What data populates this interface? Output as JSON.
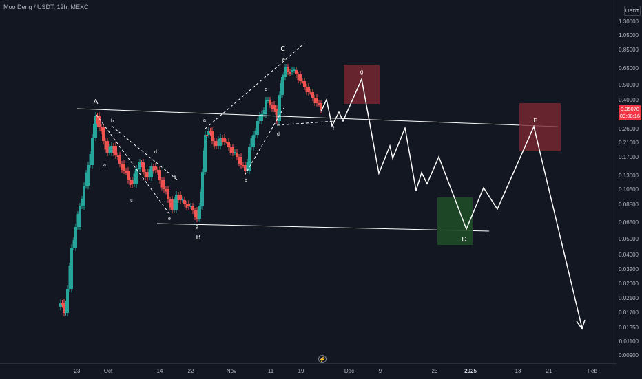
{
  "header": {
    "symbol_title": "Moo Deng / USDT, 12h, MEXC"
  },
  "price_axis": {
    "currency_label": "USDT",
    "last_price": "0.35078",
    "countdown": "09:00:16",
    "ticks": [
      "1.30000",
      "1.05000",
      "0.85000",
      "0.65000",
      "0.50000",
      "0.40000",
      "0.26000",
      "0.21000",
      "0.17000",
      "0.13000",
      "0.10500",
      "0.08500",
      "0.06500",
      "0.05000",
      "0.04000",
      "0.03200",
      "0.02600",
      "0.02100",
      "0.01700",
      "0.01350",
      "0.01100",
      "0.00900"
    ]
  },
  "time_axis": {
    "ticks": [
      "23",
      "Oct",
      "14",
      "22",
      "Nov",
      "11",
      "19",
      "Dec",
      "9",
      "23",
      "2025",
      "13",
      "21",
      "Feb"
    ],
    "bold_ticks": [
      "2025"
    ]
  },
  "colors": {
    "background": "#131722",
    "bull": "#26a69a",
    "bear": "#ef5350",
    "price_badge": "#f23645",
    "zone_red": "#7a2832",
    "zone_green": "#1f4b27"
  },
  "annotations": {
    "wave_A": "A",
    "wave_B": "B",
    "wave_C": "C",
    "wave_D": "D",
    "wave_E": "E",
    "sub_a1": "a",
    "sub_b1": "b",
    "sub_c1": "c",
    "sub_d1": "d",
    "sub_e1": "e",
    "sub_f1": "f",
    "sub_g1": "g",
    "sub_a2": "a",
    "sub_b2": "b",
    "sub_c2": "c",
    "sub_d2": "d",
    "sub_e2": "e",
    "sub_f2": "f",
    "sub_g2": "g"
  },
  "footer": {
    "flash_icon": "⚡"
  }
}
